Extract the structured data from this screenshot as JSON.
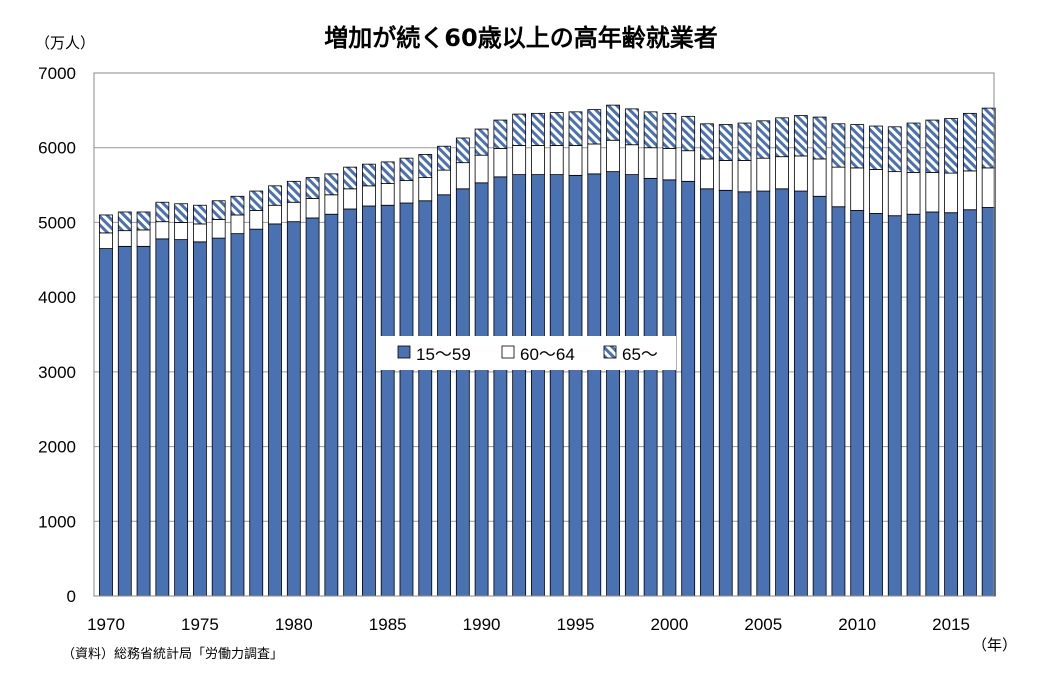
{
  "chart_data": {
    "type": "bar",
    "stacked": true,
    "title": "増加が続く60歳以上の高年齢就業者",
    "y_unit": "（万人）",
    "x_unit": "（年）",
    "source": "（資料）総務省統計局「労働力調査」",
    "ylim": [
      0,
      7000
    ],
    "yticks": [
      0,
      1000,
      2000,
      3000,
      4000,
      5000,
      6000,
      7000
    ],
    "x": [
      1970,
      1971,
      1972,
      1973,
      1974,
      1975,
      1976,
      1977,
      1978,
      1979,
      1980,
      1981,
      1982,
      1983,
      1984,
      1985,
      1986,
      1987,
      1988,
      1989,
      1990,
      1991,
      1992,
      1993,
      1994,
      1995,
      1996,
      1997,
      1998,
      1999,
      2000,
      2001,
      2002,
      2003,
      2004,
      2005,
      2006,
      2007,
      2008,
      2009,
      2010,
      2011,
      2012,
      2013,
      2014,
      2015,
      2016,
      2017
    ],
    "xticks": [
      1970,
      1975,
      1980,
      1985,
      1990,
      1995,
      2000,
      2005,
      2010,
      2015
    ],
    "grid": "y-major",
    "legend_position": "center",
    "series": [
      {
        "name": "15～59",
        "color": "#4a72b3",
        "pattern": "solid",
        "values": [
          4650,
          4680,
          4680,
          4780,
          4770,
          4740,
          4790,
          4850,
          4910,
          4980,
          5010,
          5060,
          5110,
          5180,
          5220,
          5230,
          5260,
          5290,
          5370,
          5450,
          5530,
          5610,
          5640,
          5640,
          5640,
          5630,
          5650,
          5680,
          5640,
          5590,
          5570,
          5550,
          5450,
          5430,
          5410,
          5420,
          5450,
          5420,
          5350,
          5210,
          5160,
          5120,
          5090,
          5110,
          5140,
          5130,
          5170,
          5200
        ]
      },
      {
        "name": "60～64",
        "color": "#ffffff",
        "pattern": "solid",
        "values": [
          210,
          210,
          220,
          230,
          230,
          240,
          250,
          250,
          250,
          250,
          260,
          260,
          260,
          270,
          270,
          290,
          300,
          310,
          330,
          350,
          370,
          380,
          390,
          390,
          390,
          400,
          400,
          420,
          400,
          410,
          420,
          410,
          400,
          400,
          420,
          440,
          430,
          470,
          500,
          530,
          570,
          590,
          590,
          560,
          530,
          530,
          520,
          530
        ]
      },
      {
        "name": "65～",
        "color": "#4a72b3",
        "pattern": "hatch",
        "values": [
          240,
          250,
          240,
          260,
          250,
          250,
          250,
          250,
          260,
          260,
          280,
          280,
          280,
          290,
          290,
          290,
          300,
          310,
          320,
          330,
          350,
          380,
          420,
          430,
          440,
          450,
          460,
          470,
          480,
          480,
          470,
          460,
          470,
          480,
          500,
          500,
          520,
          540,
          560,
          580,
          580,
          580,
          600,
          660,
          700,
          730,
          770,
          800
        ]
      }
    ]
  }
}
